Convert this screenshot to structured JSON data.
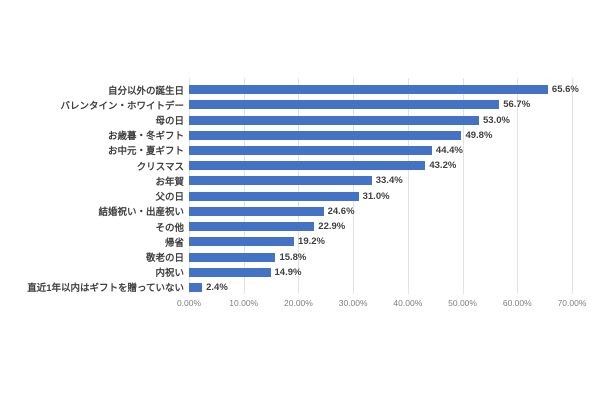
{
  "chart_data": {
    "type": "bar",
    "orientation": "horizontal",
    "title": "",
    "categories": [
      "自分以外の誕生日",
      "バレンタイン・ホワイトデー",
      "母の日",
      "お歳暮・冬ギフト",
      "お中元・夏ギフト",
      "クリスマス",
      "お年賀",
      "父の日",
      "結婚祝い・出産祝い",
      "その他",
      "帰省",
      "敬老の日",
      "内祝い",
      "直近1年以内はギフトを贈っていない"
    ],
    "values": [
      65.6,
      56.7,
      53.0,
      49.8,
      44.4,
      43.2,
      33.4,
      31.0,
      24.6,
      22.9,
      19.2,
      15.8,
      14.9,
      2.4
    ],
    "value_labels": [
      "65.6%",
      "56.7%",
      "53.0%",
      "49.8%",
      "44.4%",
      "43.2%",
      "33.4%",
      "31.0%",
      "24.6%",
      "22.9%",
      "19.2%",
      "15.8%",
      "14.9%",
      "2.4%"
    ],
    "x_ticks": [
      "0.00%",
      "10.00%",
      "20.00%",
      "30.00%",
      "40.00%",
      "50.00%",
      "60.00%",
      "70.00%"
    ],
    "xlim": [
      0,
      70
    ],
    "grid": true,
    "legend": "none",
    "colors": {
      "bar": "#4472C4",
      "category_label": "#404040",
      "value_label": "#404040",
      "axis_tick_label": "#7F7F7F",
      "gridline": "#E2E2E2",
      "background": "#FFFFFF"
    }
  }
}
